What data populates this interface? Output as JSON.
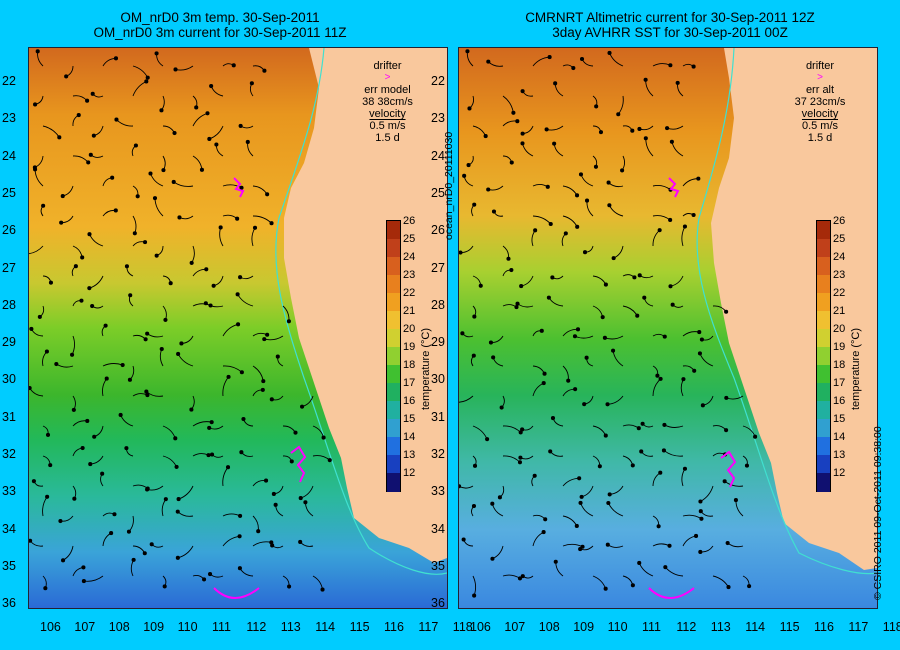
{
  "left_panel": {
    "title_line1": "OM_nrD0 3m temp. 30-Sep-2011",
    "title_line2": "OM_nrD0 3m current for 30-Sep-2011 11Z",
    "legend": {
      "drifter": "drifter",
      "err_label": "err model",
      "err_value": "38 38cm/s",
      "velocity": "velocity",
      "velocity_scale": "0.5 m/s",
      "velocity_time": "1.5 d"
    }
  },
  "right_panel": {
    "title_line1": "CMRNRT Altimetric current for 30-Sep-2011 12Z",
    "title_line2": "3day AVHRR SST for 30-Sep-2011 00Z",
    "legend": {
      "drifter": "drifter",
      "err_label": "err alt",
      "err_value": "37 23cm/s",
      "velocity": "velocity",
      "velocity_scale": "0.5 m/s",
      "velocity_time": "1.5 d"
    }
  },
  "middle_label": "ocean_nrD0_20111030",
  "copyright": "© CSIRO 2011   09-Oct-2011 09:38:00",
  "colorbar": {
    "title": "temperature (°C)",
    "ticks": [
      "26",
      "25",
      "24",
      "23",
      "22",
      "21",
      "20",
      "19",
      "18",
      "17",
      "16",
      "15",
      "14",
      "13",
      "12"
    ]
  },
  "axes": {
    "lat_labels": [
      "22",
      "23",
      "24",
      "25",
      "26",
      "27",
      "28",
      "29",
      "30",
      "31",
      "32",
      "33",
      "34",
      "35",
      "36"
    ],
    "lon_labels": [
      "106",
      "107",
      "108",
      "109",
      "110",
      "111",
      "112",
      "113",
      "114",
      "115",
      "116",
      "117",
      "118"
    ]
  },
  "colors": {
    "background": "#00ccff",
    "land": "#f9c89d",
    "drifter": "#ff00ff",
    "coast_contour": "#40e0d0"
  }
}
